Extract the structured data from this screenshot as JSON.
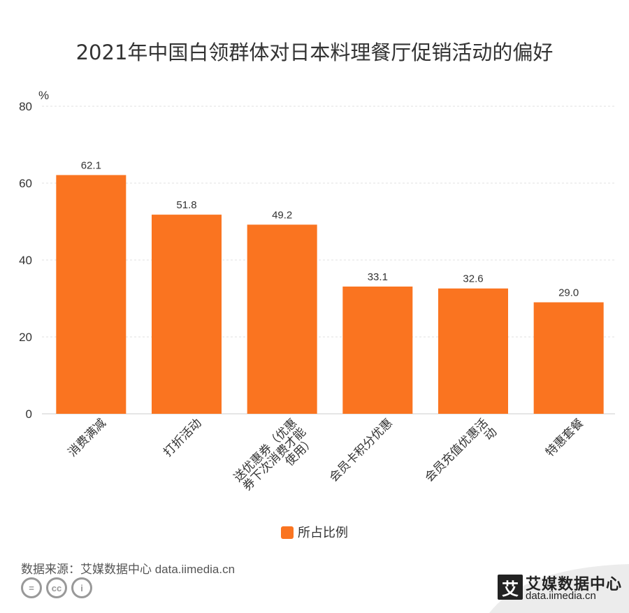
{
  "title": "2021年中国白领群体对日本料理餐厅促销活动的偏好",
  "unit_label": "%",
  "legend": {
    "label": "所占比例",
    "color": "#FA7420"
  },
  "source": "数据来源：艾媒数据中心 data.iimedia.cn",
  "cc_icons": [
    "=",
    "cc",
    "i"
  ],
  "logo": {
    "mark": "艾",
    "name": "艾媒数据中心",
    "url": "data.iimedia.cn"
  },
  "chart_data": {
    "type": "bar",
    "categories": [
      "消费满减",
      "打折活动",
      "送优惠券（优惠券下次消费才能使用）",
      "会员卡积分优惠",
      "会员充值优惠活动",
      "特惠套餐"
    ],
    "category_lines": [
      [
        "消费满减"
      ],
      [
        "打折活动"
      ],
      [
        "送优惠券（优惠",
        "券下次消费才能",
        "使用）"
      ],
      [
        "会员卡积分优惠"
      ],
      [
        "会员充值优惠活",
        "动"
      ],
      [
        "特惠套餐"
      ]
    ],
    "series": [
      {
        "name": "所占比例",
        "values": [
          62.1,
          51.8,
          49.2,
          33.1,
          32.6,
          29.0
        ]
      }
    ],
    "ylim": [
      0,
      80
    ],
    "yticks": [
      0,
      20,
      40,
      60,
      80
    ],
    "ylabel": "%",
    "grid": true,
    "legend_position": "bottom"
  }
}
